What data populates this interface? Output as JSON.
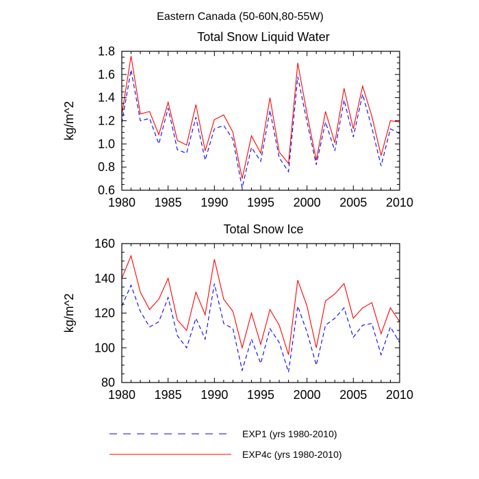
{
  "suptitle": "Eastern Canada (50-60N,80-55W)",
  "legend_placement": "bottom",
  "colors": {
    "exp1": "#0000ff",
    "exp4c": "#ff0000",
    "axis": "#000000"
  },
  "chart_data": [
    {
      "type": "line",
      "title": "Total Snow Liquid Water",
      "xlabel": "",
      "ylabel": "kg/m^2",
      "xlim": [
        1980,
        2010
      ],
      "ylim": [
        0.6,
        1.8
      ],
      "xticks": [
        1980,
        1985,
        1990,
        1995,
        2000,
        2005,
        2010
      ],
      "yticks": [
        0.6,
        0.8,
        1.0,
        1.2,
        1.4,
        1.6,
        1.8
      ],
      "ytick_labels": [
        "0.6",
        "0.8",
        "1.0",
        "1.2",
        "1.4",
        "1.6",
        "1.8"
      ],
      "grid": false,
      "x": [
        1980,
        1981,
        1982,
        1983,
        1984,
        1985,
        1986,
        1987,
        1988,
        1989,
        1990,
        1991,
        1992,
        1993,
        1994,
        1995,
        1996,
        1997,
        1998,
        1999,
        2000,
        2001,
        2002,
        2003,
        2004,
        2005,
        2006,
        2007,
        2008,
        2009,
        2010
      ],
      "series": [
        {
          "name": "EXP1 (yrs 1980-2010)",
          "style": "dashed",
          "color": "#0000ff",
          "values": [
            1.18,
            1.64,
            1.2,
            1.22,
            1.0,
            1.31,
            0.95,
            0.92,
            1.23,
            0.86,
            1.13,
            1.16,
            1.04,
            0.62,
            0.97,
            0.85,
            1.29,
            0.88,
            0.76,
            1.58,
            1.19,
            0.82,
            1.19,
            0.94,
            1.38,
            1.06,
            1.43,
            1.14,
            0.81,
            1.13,
            1.09
          ]
        },
        {
          "name": "EXP4c (yrs 1980-2010)",
          "style": "solid",
          "color": "#ff0000",
          "values": [
            1.25,
            1.76,
            1.26,
            1.28,
            1.08,
            1.36,
            1.03,
            0.99,
            1.34,
            0.94,
            1.21,
            1.25,
            1.1,
            0.7,
            1.07,
            0.92,
            1.4,
            0.93,
            0.83,
            1.7,
            1.26,
            0.86,
            1.28,
            1.01,
            1.48,
            1.13,
            1.5,
            1.24,
            0.9,
            1.2,
            1.19
          ]
        }
      ]
    },
    {
      "type": "line",
      "title": "Total Snow Ice",
      "xlabel": "",
      "ylabel": "kg/m^2",
      "xlim": [
        1980,
        2010
      ],
      "ylim": [
        80,
        160
      ],
      "xticks": [
        1980,
        1985,
        1990,
        1995,
        2000,
        2005,
        2010
      ],
      "yticks": [
        80,
        100,
        120,
        140,
        160
      ],
      "ytick_labels": [
        "80",
        "100",
        "120",
        "140",
        "160"
      ],
      "grid": false,
      "x": [
        1980,
        1981,
        1982,
        1983,
        1984,
        1985,
        1986,
        1987,
        1988,
        1989,
        1990,
        1991,
        1992,
        1993,
        1994,
        1995,
        1996,
        1997,
        1998,
        1999,
        2000,
        2001,
        2002,
        2003,
        2004,
        2005,
        2006,
        2007,
        2008,
        2009,
        2010
      ],
      "series": [
        {
          "name": "EXP1 (yrs 1980-2010)",
          "style": "dashed",
          "color": "#0000ff",
          "values": [
            124,
            136,
            121,
            112,
            115,
            129,
            107,
            100,
            117,
            105,
            137,
            114,
            111,
            87,
            105,
            91,
            111,
            103,
            86,
            124,
            109,
            90,
            113,
            117,
            123,
            106,
            113,
            114,
            96,
            112,
            103
          ]
        },
        {
          "name": "EXP4c (yrs 1980-2010)",
          "style": "solid",
          "color": "#ff0000",
          "values": [
            140,
            153,
            132,
            122,
            128,
            140,
            116,
            110,
            132,
            119,
            151,
            128,
            121,
            100,
            120,
            102,
            122,
            113,
            96,
            139,
            124,
            100,
            127,
            131,
            137,
            117,
            123,
            126,
            108,
            123,
            115
          ]
        }
      ]
    }
  ],
  "legend": [
    {
      "label": "EXP1 (yrs 1980-2010)",
      "style": "dashed",
      "color": "#0000ff"
    },
    {
      "label": "EXP4c (yrs 1980-2010)",
      "style": "solid",
      "color": "#ff0000"
    }
  ]
}
